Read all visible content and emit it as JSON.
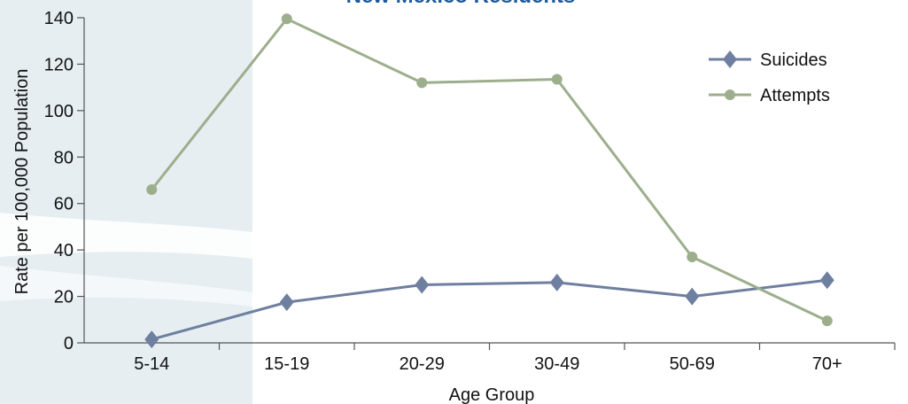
{
  "chart_data": {
    "type": "line",
    "title": "New Mexico Residents",
    "xlabel": "Age Group",
    "ylabel": "Rate per 100,000 Population",
    "categories": [
      "5-14",
      "15-19",
      "20-29",
      "30-49",
      "50-69",
      "70+"
    ],
    "ylim": [
      0,
      140
    ],
    "yticks": [
      0,
      20,
      40,
      60,
      80,
      100,
      120,
      140
    ],
    "grid": false,
    "legend_position": "top-right",
    "series": [
      {
        "name": "Suicides",
        "marker": "diamond",
        "color": "#6e7f9f",
        "values": [
          1.5,
          17.5,
          25,
          26,
          20,
          27
        ]
      },
      {
        "name": "Attempts",
        "marker": "circle",
        "color": "#9dae8d",
        "values": [
          66,
          139.5,
          112,
          113.5,
          37,
          9.5
        ]
      }
    ]
  },
  "colors": {
    "title": "#1f5a9a",
    "axis": "#555555",
    "background_band": "#e6eef2"
  }
}
